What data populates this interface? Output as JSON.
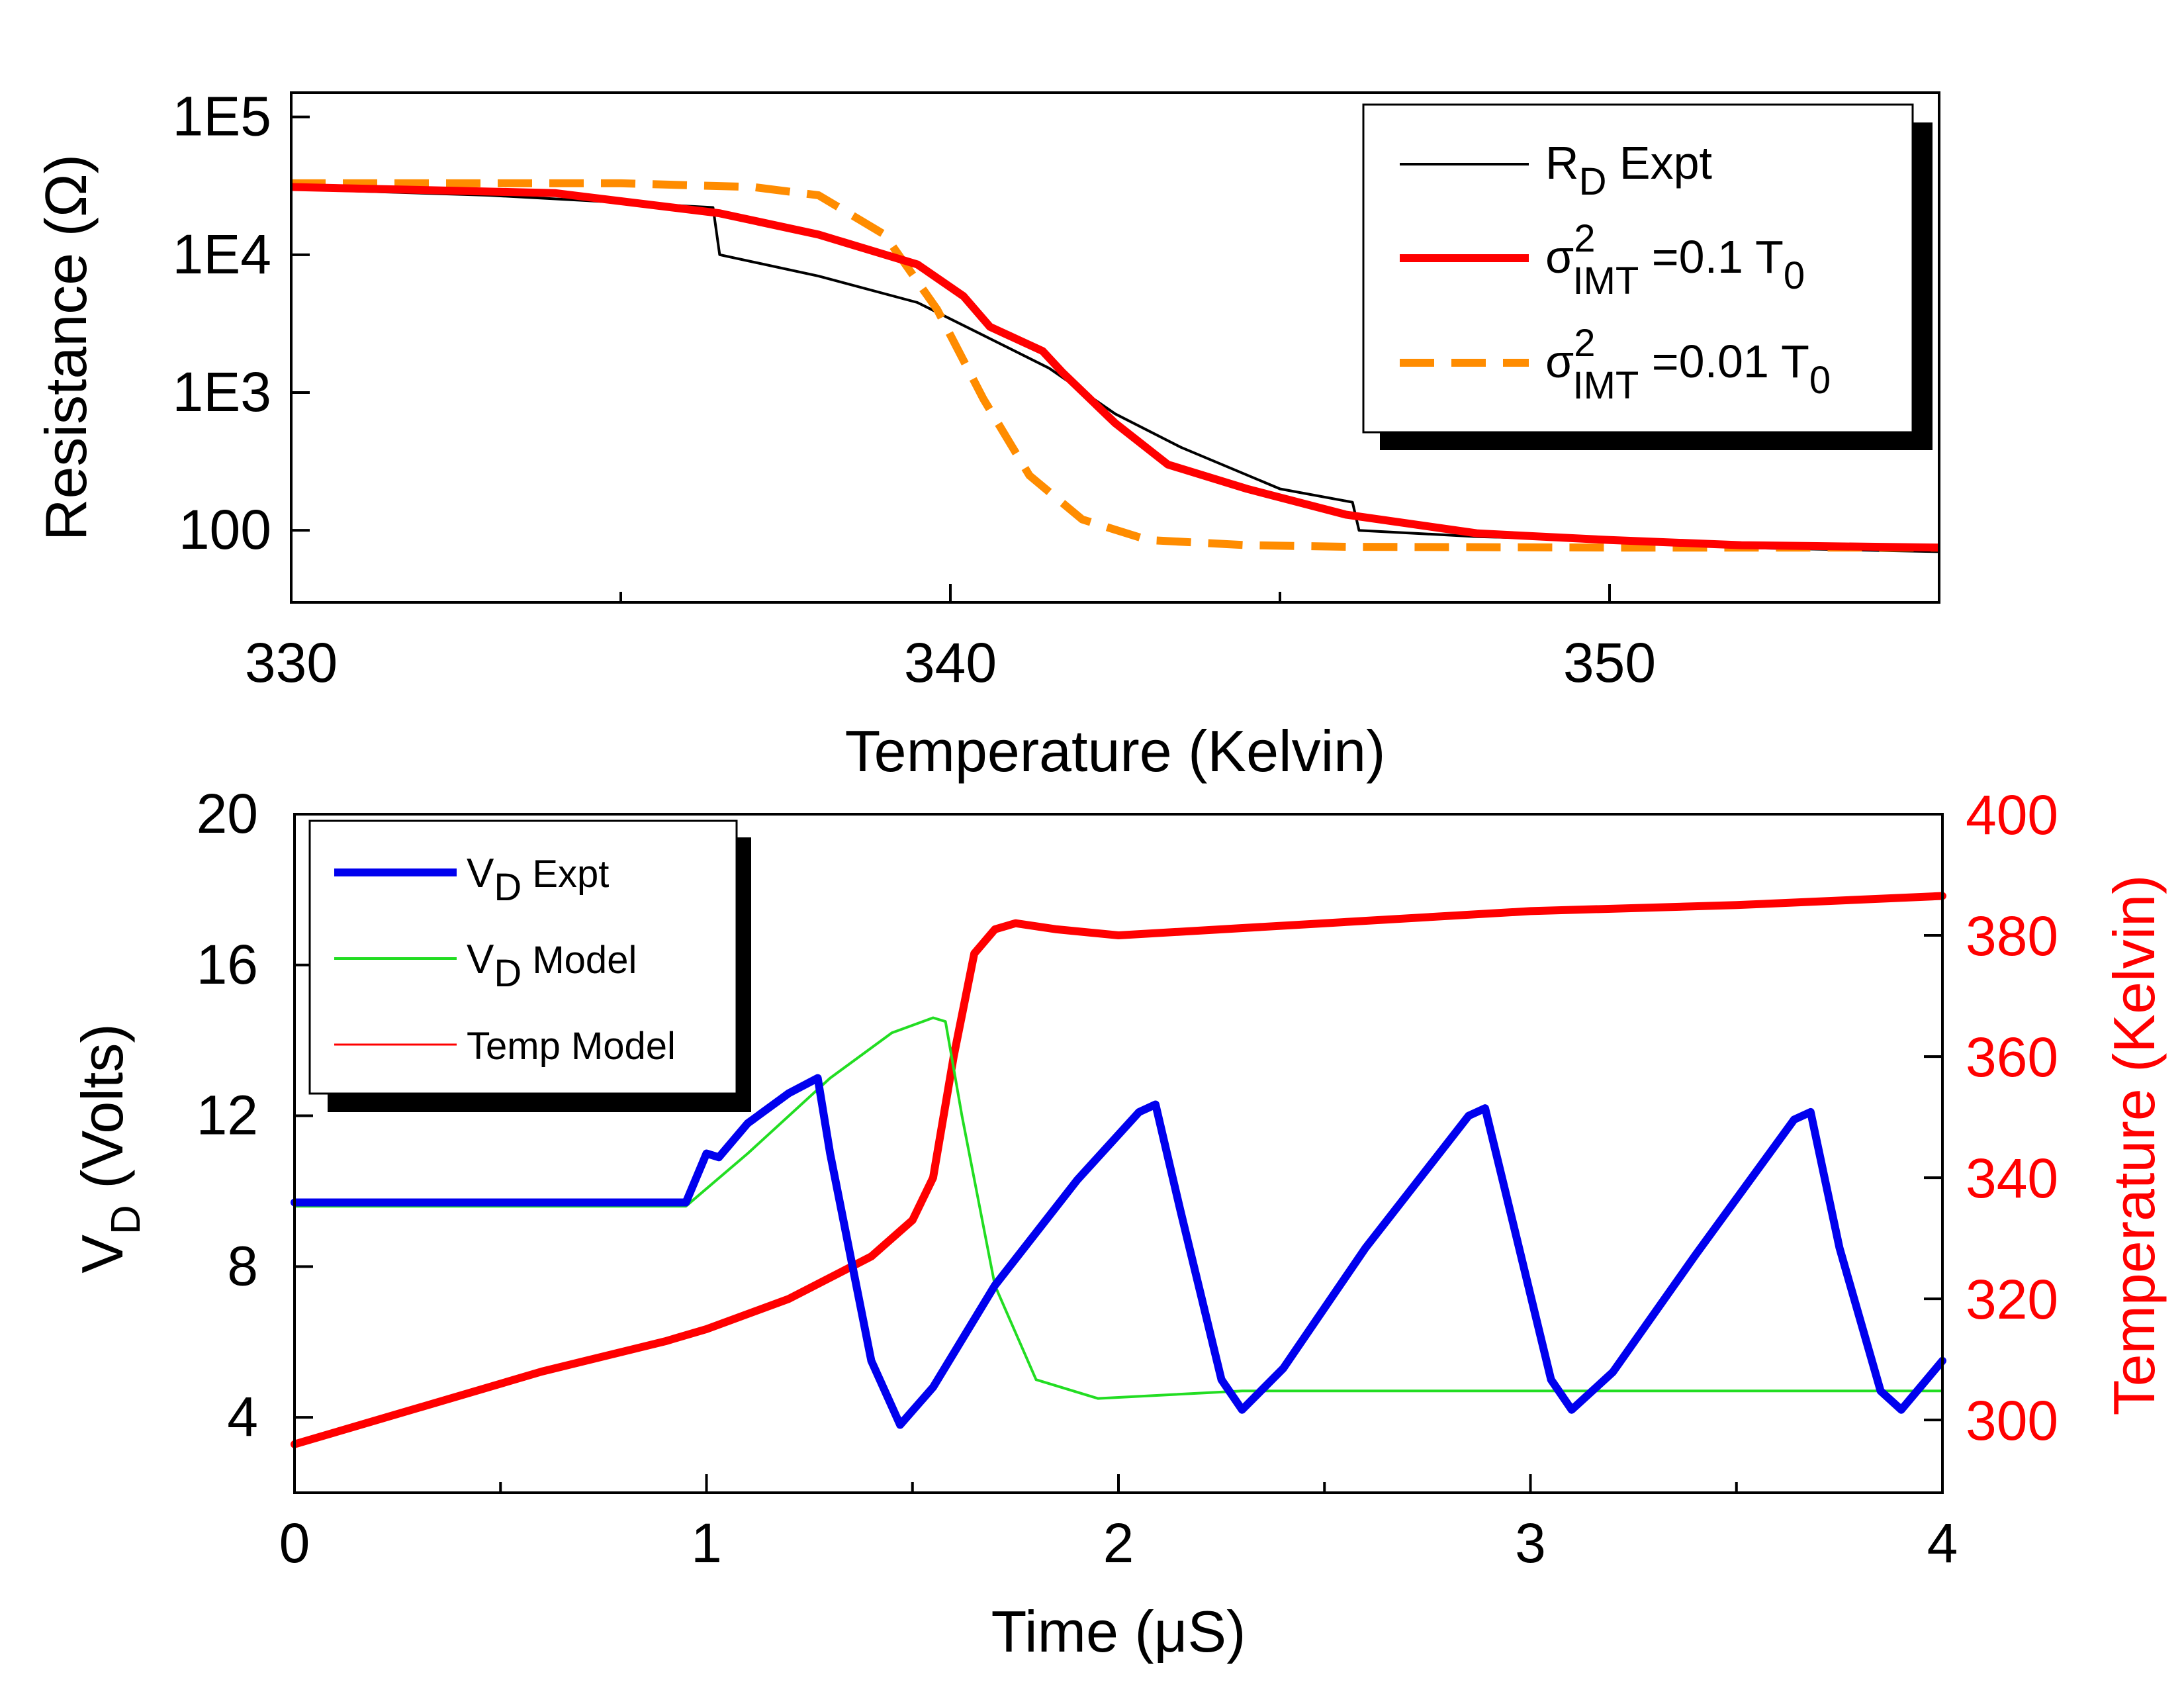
{
  "chart_data": [
    {
      "type": "line",
      "panel": "top",
      "xlabel": "Temperature (Kelvin)",
      "ylabel": "Resistance (Ω)",
      "yscale": "log",
      "xlim": [
        330,
        355
      ],
      "ylim": [
        30,
        150000
      ],
      "x_ticks": [
        330,
        340,
        350
      ],
      "x_tick_labels": [
        "330",
        "340",
        "350"
      ],
      "y_ticks": [
        100,
        1000,
        10000,
        100000
      ],
      "y_tick_labels": [
        "100",
        "1E3",
        "1E4",
        "1E5"
      ],
      "legend_position": "top-right",
      "series": [
        {
          "name": "RD Expt",
          "legend_main": "R",
          "legend_sub": "D",
          "legend_rest": " Expt",
          "color": "#000000",
          "style": "solid",
          "x": [
            330,
            333,
            336.4,
            336.5,
            338,
            339.5,
            340.5,
            341.5,
            342.5,
            343.5,
            345,
            346.1,
            346.2,
            348,
            350,
            352,
            355
          ],
          "y": [
            30000,
            27000,
            22000,
            10000,
            7000,
            4500,
            2600,
            1500,
            700,
            400,
            200,
            160,
            100,
            90,
            85,
            75,
            70
          ]
        },
        {
          "name": "σ²IMT =0.1 T0",
          "legend_main": "σ",
          "legend_sup": "2",
          "legend_sub": "IMT",
          "legend_rest": " =0.1 T",
          "legend_sub2": "0",
          "color": "#ff0000",
          "style": "solid",
          "x": [
            330,
            334,
            336.5,
            338,
            339.5,
            340.2,
            340.6,
            341.4,
            341.7,
            342.5,
            343.3,
            344.5,
            346,
            348,
            350,
            352,
            355
          ],
          "y": [
            31000,
            28000,
            20000,
            14000,
            8500,
            5000,
            3000,
            2000,
            1400,
            600,
            300,
            200,
            130,
            95,
            85,
            78,
            75
          ]
        },
        {
          "name": "σ²IMT =0.01 T0",
          "legend_main": "σ",
          "legend_sup": "2",
          "legend_sub": "IMT",
          "legend_rest": " =0.01 T",
          "legend_sub2": "0",
          "color": "#ff8c00",
          "style": "dashed",
          "x": [
            330,
            335,
            337,
            338,
            339,
            339.8,
            340.5,
            341.2,
            342,
            343,
            344.5,
            346,
            350,
            355
          ],
          "y": [
            33000,
            33000,
            31000,
            27000,
            14000,
            4000,
            900,
            250,
            120,
            85,
            78,
            76,
            75,
            75
          ]
        }
      ]
    },
    {
      "type": "line",
      "panel": "bottom",
      "xlabel_main": "Time (",
      "xlabel_greek": "μ",
      "xlabel_rest": "S)",
      "ylabel_main": "V",
      "ylabel_sub": "D",
      "ylabel_rest": " (Volts)",
      "y2label": "Temperature (Kelvin)",
      "xlim": [
        0,
        4
      ],
      "ylim": [
        2,
        20
      ],
      "y2lim": [
        288,
        400
      ],
      "x_ticks": [
        0,
        1,
        2,
        3,
        4
      ],
      "x_tick_labels": [
        "0",
        "1",
        "2",
        "3",
        "4"
      ],
      "y_ticks": [
        4,
        8,
        12,
        16,
        20
      ],
      "y_tick_labels": [
        "4",
        "8",
        "12",
        "16",
        "20"
      ],
      "y2_ticks": [
        300,
        320,
        340,
        360,
        380,
        400
      ],
      "y2_tick_labels": [
        "300",
        "320",
        "340",
        "360",
        "380",
        "400"
      ],
      "legend_position": "top-left",
      "series": [
        {
          "name": "VD Expt",
          "legend_main": "V",
          "legend_sub": "D",
          "legend_rest": " Expt",
          "color": "#0000ee",
          "axis": "left",
          "x": [
            0,
            0.95,
            1.0,
            1.03,
            1.1,
            1.2,
            1.27,
            1.3,
            1.4,
            1.47,
            1.55,
            1.7,
            1.9,
            2.05,
            2.09,
            2.15,
            2.25,
            2.3,
            2.4,
            2.6,
            2.85,
            2.89,
            2.95,
            3.05,
            3.1,
            3.2,
            3.4,
            3.64,
            3.68,
            3.75,
            3.85,
            3.9,
            4.0
          ],
          "y": [
            9.7,
            9.7,
            11.0,
            10.9,
            11.8,
            12.6,
            13.0,
            11.0,
            5.5,
            3.8,
            4.8,
            7.5,
            10.3,
            12.1,
            12.3,
            9.5,
            5.0,
            4.2,
            5.3,
            8.5,
            12.0,
            12.2,
            9.5,
            5.0,
            4.2,
            5.2,
            8.3,
            11.9,
            12.1,
            8.5,
            4.7,
            4.2,
            5.5
          ]
        },
        {
          "name": "VD Model",
          "legend_main": "V",
          "legend_sub": "D",
          "legend_rest": " Model",
          "color": "#22dd22",
          "axis": "left",
          "x": [
            0,
            0.95,
            1.1,
            1.3,
            1.45,
            1.55,
            1.58,
            1.62,
            1.7,
            1.8,
            1.95,
            2.3,
            3.0,
            4.0
          ],
          "y": [
            9.6,
            9.6,
            11.0,
            13.0,
            14.2,
            14.6,
            14.5,
            12.0,
            7.5,
            5.0,
            4.5,
            4.7,
            4.7,
            4.7
          ],
          "note": "legend_sample_thin"
        },
        {
          "name": "Temp Model",
          "legend_main": "Temp Model",
          "color": "#ff0000",
          "axis": "right",
          "x": [
            0,
            0.3,
            0.6,
            0.9,
            1.0,
            1.2,
            1.4,
            1.5,
            1.55,
            1.6,
            1.65,
            1.7,
            1.75,
            1.85,
            2.0,
            2.5,
            3.0,
            3.5,
            4.0
          ],
          "y": [
            296,
            302,
            308,
            313,
            315,
            320,
            327,
            333,
            340,
            360,
            377,
            381,
            382,
            381,
            380,
            382,
            384,
            385,
            386.5
          ]
        }
      ]
    }
  ]
}
